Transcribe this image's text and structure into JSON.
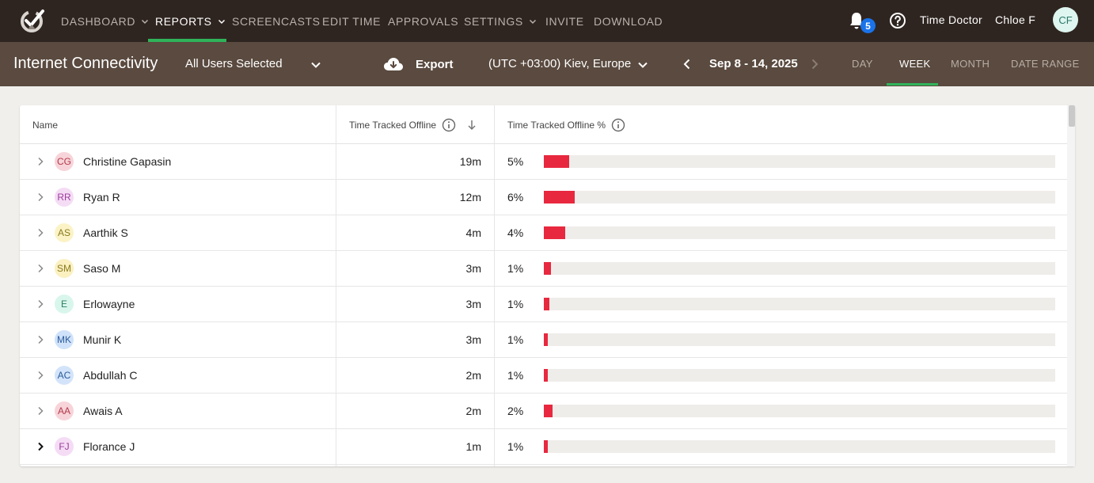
{
  "nav": {
    "items": [
      {
        "label": "DASHBOARD"
      },
      {
        "label": "REPORTS"
      },
      {
        "label": "SCREENCASTS"
      },
      {
        "label": "EDIT TIME"
      },
      {
        "label": "APPROVALS"
      },
      {
        "label": "SETTINGS"
      },
      {
        "label": "INVITE"
      },
      {
        "label": "DOWNLOAD"
      }
    ],
    "active": "REPORTS",
    "notification_count": "5",
    "company": "Time Doctor",
    "user_name": "Chloe F",
    "user_initials": "CF"
  },
  "subheader": {
    "title": "Internet Connectivity",
    "users_filter": "All Users Selected",
    "export_label": "Export",
    "timezone": "(UTC +03:00) Kiev, Europe",
    "date_range": "Sep 8 - 14, 2025",
    "periods": [
      {
        "label": "DAY"
      },
      {
        "label": "WEEK"
      },
      {
        "label": "MONTH"
      },
      {
        "label": "DATE RANGE"
      }
    ],
    "active_period": "WEEK"
  },
  "table": {
    "columns": {
      "name": "Name",
      "time_offline": "Time Tracked Offline",
      "pct_offline": "Time Tracked Offline %"
    },
    "rows": [
      {
        "initials": "CG",
        "name": "Christine Gapasin",
        "time": "19m",
        "pct": "5%",
        "bar": 0.05,
        "avatar_bg": "#f7d4d9",
        "avatar_fg": "#b33a4c"
      },
      {
        "initials": "RR",
        "name": "Ryan R",
        "time": "12m",
        "pct": "6%",
        "bar": 0.06,
        "avatar_bg": "#f5dcf5",
        "avatar_fg": "#9a3d9a"
      },
      {
        "initials": "AS",
        "name": "Aarthik S",
        "time": "4m",
        "pct": "4%",
        "bar": 0.042,
        "avatar_bg": "#fbf3c6",
        "avatar_fg": "#8a7a1e"
      },
      {
        "initials": "SM",
        "name": "Saso M",
        "time": "3m",
        "pct": "1%",
        "bar": 0.014,
        "avatar_bg": "#fbf0c0",
        "avatar_fg": "#8a7a1e"
      },
      {
        "initials": "E",
        "name": "Erlowayne",
        "time": "3m",
        "pct": "1%",
        "bar": 0.011,
        "avatar_bg": "#d9f6ec",
        "avatar_fg": "#2b8060"
      },
      {
        "initials": "MK",
        "name": "Munir K",
        "time": "3m",
        "pct": "1%",
        "bar": 0.008,
        "avatar_bg": "#cfe2fa",
        "avatar_fg": "#2a5a9a"
      },
      {
        "initials": "AC",
        "name": "Abdullah C",
        "time": "2m",
        "pct": "1%",
        "bar": 0.008,
        "avatar_bg": "#d3e4fa",
        "avatar_fg": "#2a5a9a"
      },
      {
        "initials": "AA",
        "name": "Awais A",
        "time": "2m",
        "pct": "2%",
        "bar": 0.017,
        "avatar_bg": "#f7d4d9",
        "avatar_fg": "#b33a4c"
      },
      {
        "initials": "FJ",
        "name": "Florance J",
        "time": "1m",
        "pct": "1%",
        "bar": 0.008,
        "avatar_bg": "#f5dcf5",
        "avatar_fg": "#9a3d9a"
      }
    ]
  },
  "colors": {
    "nav_bg": "#2f2520",
    "subheader_bg": "#5a4a3f",
    "accent": "#2fb35a",
    "bar": "#e8283f",
    "badge": "#1a73e8"
  }
}
